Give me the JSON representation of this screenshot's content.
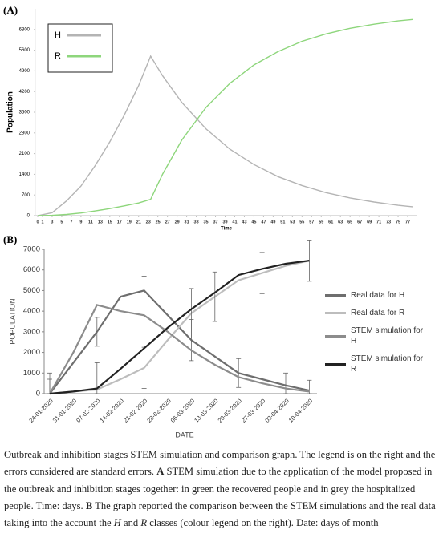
{
  "chart_data": [
    {
      "type": "line",
      "panel_label": "(A)",
      "x_label": "Time",
      "y_label": "Population",
      "x": [
        0,
        3,
        6,
        9,
        12,
        15,
        18,
        21,
        23.5,
        26,
        30,
        35,
        40,
        45,
        50,
        55,
        60,
        65,
        70,
        75,
        78
      ],
      "series": [
        {
          "name": "H",
          "color": "#b4b4b4",
          "values": [
            0,
            100,
            500,
            1000,
            1700,
            2500,
            3400,
            4400,
            5400,
            4730,
            3830,
            2940,
            2250,
            1730,
            1320,
            1020,
            780,
            600,
            460,
            350,
            300
          ]
        },
        {
          "name": "R",
          "color": "#8ed67c",
          "values": [
            0,
            10,
            40,
            90,
            160,
            240,
            330,
            430,
            550,
            1410,
            2560,
            3660,
            4480,
            5100,
            5550,
            5900,
            6150,
            6340,
            6480,
            6590,
            6640
          ]
        }
      ],
      "xlim": [
        0,
        79
      ],
      "ylim": [
        0,
        7000
      ],
      "xticks": [
        0,
        1,
        3,
        5,
        7,
        9,
        11,
        13,
        15,
        17,
        19,
        21,
        23,
        25,
        27,
        29,
        31,
        33,
        35,
        37,
        39,
        41,
        43,
        45,
        47,
        49,
        51,
        53,
        55,
        57,
        59,
        61,
        63,
        65,
        67,
        69,
        71,
        73,
        75,
        77
      ],
      "yticks": [
        0,
        700,
        1400,
        2100,
        2800,
        3500,
        4200,
        4900,
        5600,
        6300
      ],
      "legend": "top-left"
    },
    {
      "type": "line",
      "panel_label": "(B)",
      "x_label": "DATE",
      "y_label": "POPULATION",
      "categories": [
        "24-01-2020",
        "31-01-2020",
        "07-02-2020",
        "14-02-2020",
        "21-02-2020",
        "28-02-2020",
        "06-03-2020",
        "13-03-2020",
        "20-03-2020",
        "27-03-2020",
        "03-04-2020",
        "10-04-2020"
      ],
      "series": [
        {
          "name": "Real data for H",
          "color": "#6e6e6e",
          "values": [
            0,
            1500,
            3000,
            4700,
            5000,
            3800,
            2600,
            1800,
            1000,
            700,
            400,
            150
          ],
          "errors": [
            700,
            null,
            700,
            null,
            700,
            null,
            1000,
            null,
            700,
            null,
            600,
            500
          ]
        },
        {
          "name": "Real data for R",
          "color": "#bdbdbd",
          "values": [
            0,
            100,
            200,
            700,
            1250,
            2600,
            3900,
            4700,
            5500,
            5850,
            6200,
            6450
          ],
          "errors": [
            1000,
            null,
            1300,
            null,
            1000,
            null,
            1200,
            1200,
            null,
            1000,
            null,
            1000
          ]
        },
        {
          "name": "STEM simulation for H",
          "color": "#8c8c8c",
          "values": [
            0,
            2000,
            4300,
            4000,
            3800,
            3000,
            2100,
            1400,
            800,
            500,
            250,
            100
          ]
        },
        {
          "name": "STEM simulation for R",
          "color": "#222222",
          "values": [
            0,
            100,
            250,
            1200,
            2200,
            3200,
            4100,
            4900,
            5750,
            6050,
            6300,
            6450
          ]
        }
      ],
      "ylim": [
        0,
        7000
      ],
      "yticks": [
        0,
        1000,
        2000,
        3000,
        4000,
        5000,
        6000,
        7000
      ],
      "legend": "right"
    }
  ],
  "caption": {
    "parts": [
      "Outbreak and inhibition stages STEM simulation and comparison graph. The legend is on the right and the errors considered are standard errors. ",
      "A",
      " STEM simulation due to the application of the model proposed in the outbreak and inhibition stages together: in green the recovered people and in grey the hospitalized people. Time: days. ",
      "B",
      " The graph reported the comparison between the STEM simulations and the real data taking into the account the ",
      "H",
      " and ",
      "R",
      " classes (colour legend on the right). Date: days of month"
    ]
  }
}
